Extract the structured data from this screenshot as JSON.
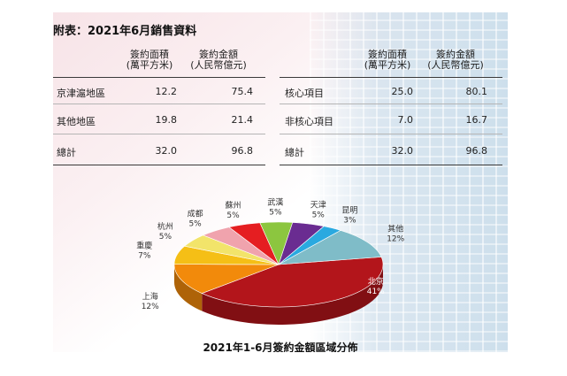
{
  "heading": "附表：2021年6月銷售資料",
  "table_left": {
    "headers": [
      "簽約面積\n(萬平方米)",
      "簽約金額\n(人民幣億元)"
    ],
    "rows": [
      {
        "label": "京津滬地區",
        "area": "12.2",
        "amount": "75.4"
      },
      {
        "label": "其他地區",
        "area": "19.8",
        "amount": "21.4"
      },
      {
        "label": "總計",
        "area": "32.0",
        "amount": "96.8"
      }
    ]
  },
  "table_right": {
    "headers": [
      "簽約面積\n(萬平方米)",
      "簽約金額\n(人民幣億元)"
    ],
    "rows": [
      {
        "label": "核心項目",
        "area": "25.0",
        "amount": "80.1"
      },
      {
        "label": "非核心項目",
        "area": "7.0",
        "amount": "16.7"
      },
      {
        "label": "總計",
        "area": "32.0",
        "amount": "96.8"
      }
    ]
  },
  "chart_data": {
    "type": "pie",
    "title": "2021年1-6月簽約金額區域分佈",
    "slices": [
      {
        "name": "北京",
        "label": "41%",
        "value": 41,
        "color": "#b3151b"
      },
      {
        "name": "上海",
        "label": "12%",
        "value": 12,
        "color": "#f28a0b"
      },
      {
        "name": "重慶",
        "label": "7%",
        "value": 7,
        "color": "#f5bf16"
      },
      {
        "name": "杭州",
        "label": "5%",
        "value": 5,
        "color": "#f2e46a"
      },
      {
        "name": "成都",
        "label": "5%",
        "value": 5,
        "color": "#f0a3ad"
      },
      {
        "name": "蘇州",
        "label": "5%",
        "value": 5,
        "color": "#e51e21"
      },
      {
        "name": "武漢",
        "label": "5%",
        "value": 5,
        "color": "#8cc63f"
      },
      {
        "name": "天津",
        "label": "5%",
        "value": 5,
        "color": "#6a2c91"
      },
      {
        "name": "昆明",
        "label": "3%",
        "value": 3,
        "color": "#2aa9e0"
      },
      {
        "name": "其他",
        "label": "12%",
        "value": 12,
        "color": "#7fbcc8"
      }
    ]
  }
}
